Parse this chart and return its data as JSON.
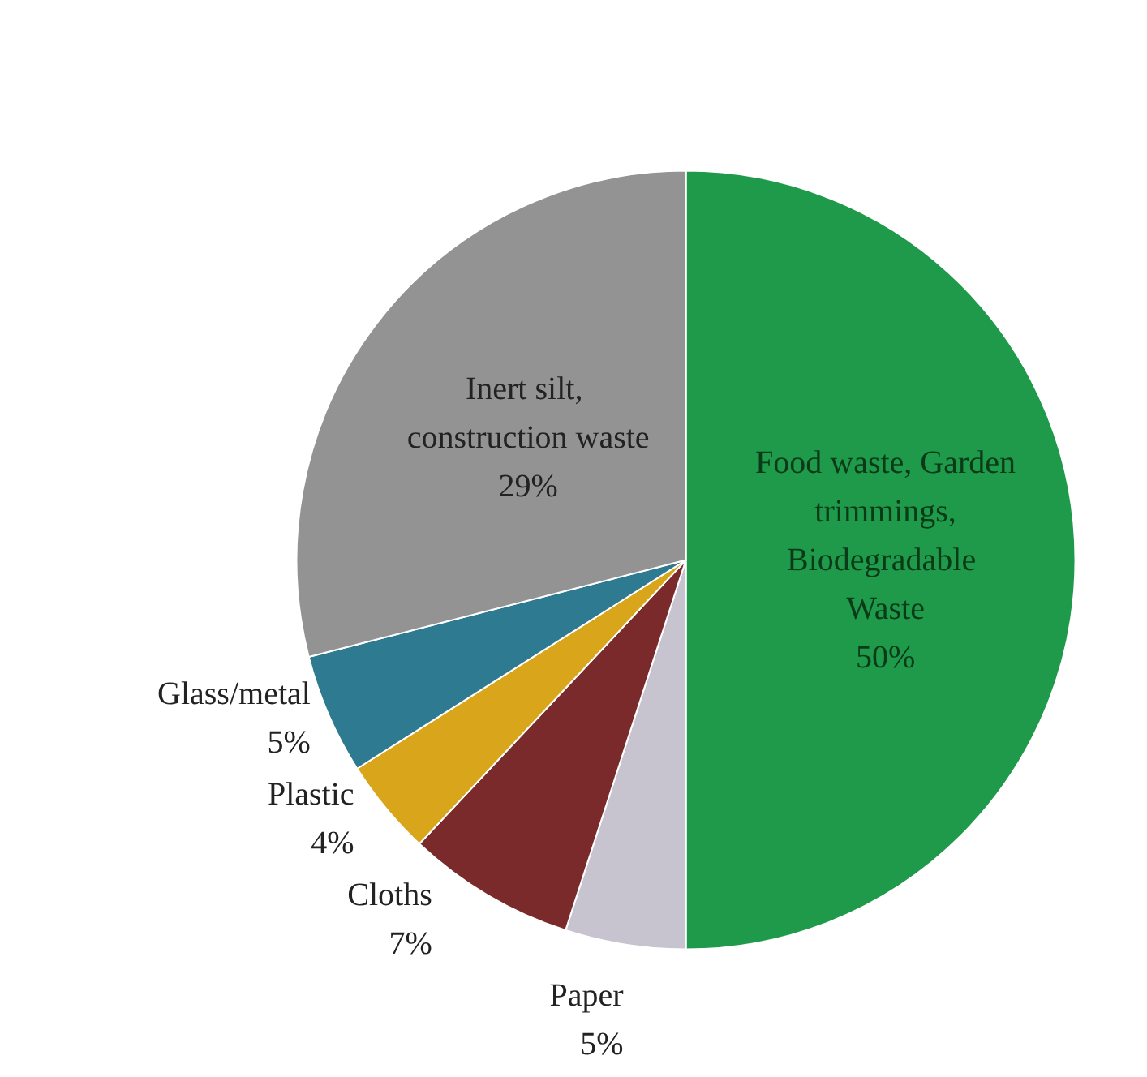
{
  "chart_data": {
    "type": "pie",
    "categories": [
      "Food waste, Garden trimmings, Biodegradable Waste",
      "Paper",
      "Cloths",
      "Plastic",
      "Glass/metal",
      "Inert silt, construction waste"
    ],
    "values": [
      50,
      5,
      7,
      4,
      5,
      29
    ],
    "value_labels": [
      "50%",
      "5%",
      "7%",
      "4%",
      "5%",
      "29%"
    ],
    "colors": [
      "#1e9a4a",
      "#c7c3cf",
      "#7b2a2c",
      "#d9a51a",
      "#2e7a91",
      "#939393"
    ],
    "legend": false
  }
}
